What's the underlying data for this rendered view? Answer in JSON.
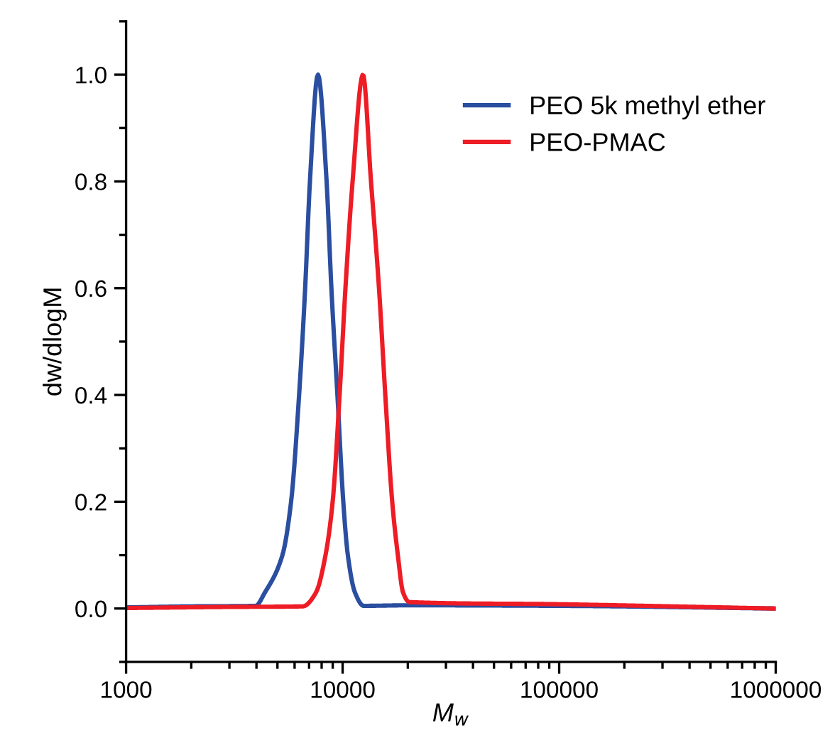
{
  "chart_data": {
    "type": "line",
    "xlabel": "M$_{w}$",
    "ylabel": "dw/dlogM",
    "log": "x",
    "xlim": [
      1000,
      1000000
    ],
    "xticks": [
      1000,
      10000,
      100000,
      1000000
    ],
    "ylim": [
      -0.1,
      1.1
    ],
    "yticks": [
      {
        "value": 0.0,
        "label": "0.0"
      },
      {
        "value": 0.2,
        "label": "0.2"
      },
      {
        "value": 0.4,
        "label": "0.4"
      },
      {
        "value": 0.6,
        "label": "0.6"
      },
      {
        "value": 0.8,
        "label": "0.8"
      },
      {
        "value": 1.0,
        "label": "1.0"
      }
    ],
    "grid": false,
    "legend": "top right",
    "marker": "none",
    "line_style": "solid",
    "series": [
      {
        "name": "PEO 5k methyl ether",
        "color": "#2a4ea0",
        "x": [
          1000,
          2000,
          3963,
          4375,
          5272,
          5781,
          6295,
          6714,
          7063,
          7691,
          8433,
          8872,
          9462,
          10069,
          10568,
          11402,
          12503,
          20000,
          100000,
          1000000
        ],
        "values": [
          0.002,
          0.004,
          0.005,
          0.03,
          0.1,
          0.2,
          0.4,
          0.6,
          0.8,
          1.0,
          0.8,
          0.6,
          0.4,
          0.2,
          0.1,
          0.03,
          0.005,
          0.006,
          0.005,
          0.0
        ]
      },
      {
        "name": "PEO-PMAC",
        "color": "#ee1c25",
        "x": [
          1000,
          3000,
          6546,
          7534,
          8337,
          8995,
          9683,
          10304,
          11117,
          12417,
          13521,
          14723,
          15740,
          16943,
          17989,
          19011,
          20324,
          100000,
          1000000
        ],
        "values": [
          0.001,
          0.003,
          0.004,
          0.03,
          0.1,
          0.2,
          0.4,
          0.6,
          0.8,
          1.0,
          0.8,
          0.6,
          0.4,
          0.2,
          0.1,
          0.03,
          0.012,
          0.008,
          0.0
        ]
      }
    ]
  }
}
